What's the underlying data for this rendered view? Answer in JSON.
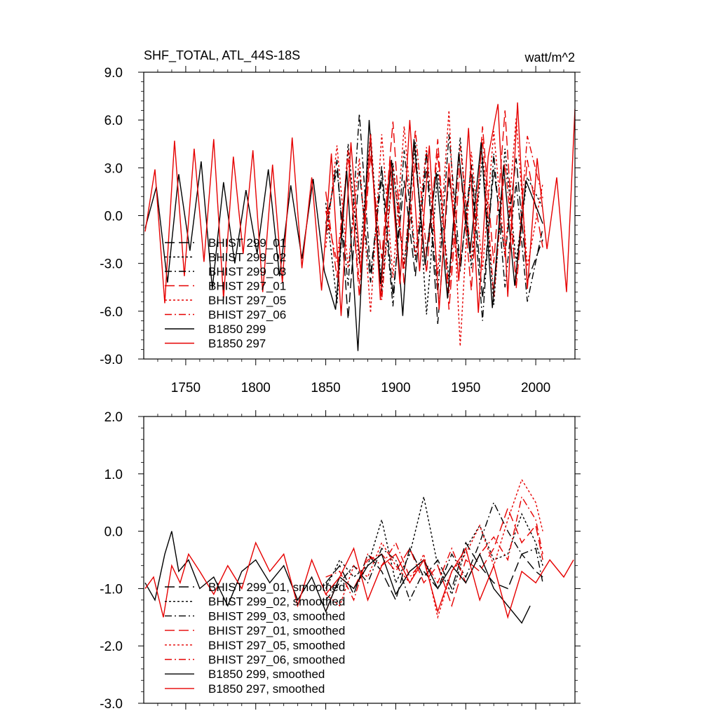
{
  "figure": {
    "title_left": "SHF_TOTAL, ATL_44S-18S",
    "title_right": "watt/m^2"
  },
  "chart_data": [
    {
      "type": "line",
      "panel": "top",
      "title": "SHF_TOTAL, ATL_44S-18S",
      "units": "watt/m^2",
      "xlim": [
        1720,
        2028
      ],
      "ylim": [
        -9,
        9
      ],
      "x_ticks": [
        1750,
        1800,
        1850,
        1900,
        1950,
        2000
      ],
      "x_tick_labels": [
        "1750",
        "1800",
        "1850",
        "1900",
        "1950",
        "2000"
      ],
      "y_ticks": [
        -9,
        -6,
        -3,
        0,
        3,
        6,
        9
      ],
      "y_tick_labels": [
        "-9.0",
        "-6.0",
        "-3.0",
        "0.0",
        "3.0",
        "6.0",
        "9.0"
      ],
      "legend_position": "lower-left",
      "series": [
        {
          "name": "BHIST 299_01",
          "color": "#000000",
          "dash": "long-dash",
          "x": [
            1850,
            1858,
            1866,
            1874,
            1882,
            1890,
            1898,
            1906,
            1914,
            1922,
            1930,
            1938,
            1946,
            1954,
            1962,
            1970,
            1978,
            1986,
            1994,
            2005
          ],
          "y": [
            -1.2,
            3.5,
            -6.5,
            2.8,
            -4.2,
            3.1,
            -5.0,
            2.2,
            -3.8,
            4.0,
            -6.8,
            2.5,
            -3.5,
            3.2,
            -5.2,
            2.9,
            -2.5,
            3.6,
            -4.1,
            -1.5
          ]
        },
        {
          "name": "BHIST 299_02",
          "color": "#000000",
          "dash": "dot",
          "x": [
            1850,
            1858,
            1866,
            1874,
            1882,
            1890,
            1898,
            1906,
            1914,
            1922,
            1930,
            1938,
            1946,
            1954,
            1962,
            1970,
            1978,
            1986,
            1994,
            2005
          ],
          "y": [
            0.8,
            -5.5,
            4.5,
            -3.0,
            5.2,
            -4.8,
            3.3,
            -3.1,
            4.6,
            -6.2,
            2.8,
            -4.0,
            4.9,
            -3.3,
            3.7,
            -5.6,
            4.2,
            -2.9,
            2.4,
            0.5
          ]
        },
        {
          "name": "BHIST 299_03",
          "color": "#000000",
          "dash": "dash-dot",
          "x": [
            1850,
            1858,
            1866,
            1874,
            1882,
            1890,
            1898,
            1906,
            1914,
            1922,
            1930,
            1938,
            1946,
            1954,
            1962,
            1970,
            1978,
            1986,
            1994,
            2005
          ],
          "y": [
            -0.5,
            2.9,
            -4.4,
            6.4,
            -3.6,
            2.4,
            -5.7,
            4.1,
            -2.8,
            3.0,
            -4.9,
            5.1,
            -3.2,
            2.6,
            -6.6,
            3.9,
            -4.5,
            2.1,
            -5.4,
            -0.8
          ]
        },
        {
          "name": "BHIST 297_01",
          "color": "#e60000",
          "dash": "long-dash",
          "x": [
            1850,
            1858,
            1866,
            1874,
            1882,
            1890,
            1898,
            1906,
            1914,
            1922,
            1930,
            1938,
            1946,
            1954,
            1962,
            1970,
            1978,
            1986,
            1994,
            2005
          ],
          "y": [
            1.5,
            -3.9,
            4.1,
            -5.1,
            3.8,
            -2.7,
            5.9,
            -4.4,
            3.4,
            -3.6,
            4.8,
            -5.9,
            3.1,
            -4.7,
            5.6,
            -3.0,
            6.6,
            -4.6,
            3.5,
            -2.0
          ]
        },
        {
          "name": "BHIST 297_05",
          "color": "#e60000",
          "dash": "dot",
          "x": [
            1850,
            1858,
            1866,
            1874,
            1882,
            1890,
            1898,
            1906,
            1914,
            1922,
            1930,
            1938,
            1946,
            1954,
            1962,
            1970,
            1978,
            1986,
            1994,
            2005
          ],
          "y": [
            -2.0,
            4.4,
            -3.3,
            3.6,
            -6.1,
            5.1,
            -3.9,
            5.6,
            -2.5,
            4.3,
            -3.7,
            6.6,
            -8.2,
            4.0,
            -3.4,
            5.3,
            -2.6,
            6.1,
            -3.2,
            2.0
          ]
        },
        {
          "name": "BHIST 297_06",
          "color": "#e60000",
          "dash": "dash-dot",
          "x": [
            1850,
            1858,
            1866,
            1874,
            1882,
            1890,
            1898,
            1906,
            1914,
            1922,
            1930,
            1938,
            1946,
            1954,
            1962,
            1970,
            1978,
            1986,
            1994,
            2005
          ],
          "y": [
            0.3,
            -2.9,
            3.6,
            -4.3,
            4.7,
            -5.3,
            3.0,
            -3.4,
            5.4,
            -2.3,
            3.9,
            -4.9,
            4.4,
            -2.7,
            4.8,
            -5.1,
            3.3,
            -4.0,
            5.0,
            1.1
          ]
        },
        {
          "name": "B1850 299",
          "color": "#000000",
          "dash": "solid",
          "x": [
            1721,
            1729,
            1737,
            1745,
            1753,
            1761,
            1769,
            1777,
            1785,
            1793,
            1801,
            1809,
            1817,
            1825,
            1833,
            1841,
            1849,
            1857,
            1865,
            1873,
            1881,
            1889,
            1897,
            1905,
            1913,
            1921,
            1929,
            1937,
            1945,
            1953,
            1961,
            1969,
            1977,
            1985,
            1993,
            2005
          ],
          "y": [
            -0.8,
            1.8,
            -4.2,
            2.6,
            -2.2,
            3.4,
            -4.6,
            2.1,
            -3.0,
            1.6,
            -2.4,
            2.9,
            -3.8,
            1.9,
            -2.7,
            2.3,
            -3.5,
            -5.9,
            2.8,
            -8.5,
            6.0,
            -4.3,
            3.5,
            -6.3,
            4.8,
            -3.1,
            2.7,
            -5.2,
            3.9,
            -2.4,
            4.6,
            -5.8,
            3.1,
            -4.4,
            2.2,
            -0.5
          ]
        },
        {
          "name": "B1850 297",
          "color": "#e60000",
          "dash": "solid",
          "x": [
            1721,
            1728,
            1735,
            1742,
            1749,
            1756,
            1763,
            1770,
            1777,
            1784,
            1791,
            1798,
            1805,
            1812,
            1819,
            1826,
            1833,
            1840,
            1847,
            1854,
            1861,
            1868,
            1875,
            1882,
            1889,
            1896,
            1903,
            1910,
            1917,
            1924,
            1931,
            1938,
            1945,
            1952,
            1959,
            1966,
            1973,
            1980,
            1987,
            1994,
            2001,
            2008,
            2015,
            2022,
            2028
          ],
          "y": [
            -1.0,
            2.9,
            -5.5,
            4.7,
            -3.8,
            4.2,
            -2.9,
            4.8,
            -5.2,
            3.7,
            -2.4,
            4.1,
            -4.8,
            3.2,
            -4.2,
            4.9,
            -3.3,
            2.4,
            -4.7,
            3.9,
            -6.3,
            4.6,
            -3.6,
            5.1,
            -5.3,
            3.5,
            -4.3,
            6.0,
            -3.5,
            4.4,
            -5.9,
            3.3,
            -4.1,
            5.5,
            -6.1,
            3.7,
            7.0,
            -5.1,
            7.1,
            -4.6,
            3.6,
            -2.1,
            2.4,
            -4.8,
            6.7
          ]
        }
      ]
    },
    {
      "type": "line",
      "panel": "bottom",
      "xlim": [
        1720,
        2028
      ],
      "ylim": [
        -3,
        2
      ],
      "y_ticks": [
        -3,
        -2,
        -1,
        0,
        1,
        2
      ],
      "y_tick_labels": [
        "-3.0",
        "-2.0",
        "-1.0",
        "0.0",
        "1.0",
        "2.0"
      ],
      "legend_position": "lower-left",
      "series": [
        {
          "name": "BHIST 299_01, smoothed",
          "color": "#000000",
          "dash": "long-dash",
          "x": [
            1850,
            1860,
            1870,
            1880,
            1890,
            1900,
            1910,
            1920,
            1930,
            1940,
            1950,
            1960,
            1970,
            1980,
            1990,
            2000,
            2005
          ],
          "y": [
            -0.9,
            -0.6,
            -1.1,
            -0.4,
            -0.7,
            -1.2,
            -0.3,
            -0.8,
            -0.5,
            -1.0,
            -0.2,
            -0.6,
            -0.9,
            -1.0,
            -0.4,
            -0.7,
            -0.8
          ]
        },
        {
          "name": "BHIST 299_02, smoothed",
          "color": "#000000",
          "dash": "dot",
          "x": [
            1850,
            1860,
            1870,
            1880,
            1890,
            1900,
            1910,
            1920,
            1930,
            1940,
            1950,
            1960,
            1970,
            1980,
            1990,
            2000,
            2005
          ],
          "y": [
            -1.0,
            -0.5,
            -0.8,
            -0.6,
            0.2,
            -0.9,
            -0.4,
            0.6,
            -0.6,
            -1.1,
            -0.3,
            0.1,
            -0.5,
            -0.4,
            0.3,
            -0.2,
            -0.6
          ]
        },
        {
          "name": "BHIST 299_03, smoothed",
          "color": "#000000",
          "dash": "dash-dot",
          "x": [
            1850,
            1860,
            1870,
            1880,
            1890,
            1900,
            1910,
            1920,
            1930,
            1940,
            1950,
            1960,
            1970,
            1980,
            1990,
            2000,
            2005
          ],
          "y": [
            -1.2,
            -0.9,
            -0.6,
            -0.9,
            -0.3,
            -0.5,
            -1.2,
            -0.7,
            -1.0,
            -0.4,
            -0.8,
            -0.2,
            0.5,
            0.0,
            -0.4,
            -0.3,
            -0.9
          ]
        },
        {
          "name": "BHIST 297_01, smoothed",
          "color": "#e60000",
          "dash": "long-dash",
          "x": [
            1850,
            1860,
            1870,
            1880,
            1890,
            1900,
            1910,
            1920,
            1930,
            1940,
            1950,
            1960,
            1970,
            1980,
            1990,
            2000,
            2005
          ],
          "y": [
            -1.4,
            -0.8,
            -1.0,
            -0.5,
            -0.4,
            -0.7,
            -0.3,
            -0.9,
            -0.6,
            -1.3,
            -0.5,
            -0.7,
            -0.3,
            0.4,
            -0.2,
            0.1,
            -0.5
          ]
        },
        {
          "name": "BHIST 297_05, smoothed",
          "color": "#e60000",
          "dash": "dot",
          "x": [
            1850,
            1860,
            1870,
            1880,
            1890,
            1900,
            1910,
            1920,
            1930,
            1940,
            1950,
            1960,
            1970,
            1980,
            1990,
            2000,
            2005
          ],
          "y": [
            -1.1,
            -1.3,
            -0.6,
            -0.8,
            -0.2,
            -0.6,
            -0.9,
            -0.4,
            -1.5,
            -0.7,
            -0.4,
            0.1,
            -0.6,
            0.2,
            0.9,
            0.5,
            0.0
          ]
        },
        {
          "name": "BHIST 297_06, smoothed",
          "color": "#e60000",
          "dash": "dash-dot",
          "x": [
            1850,
            1860,
            1870,
            1880,
            1890,
            1900,
            1910,
            1920,
            1930,
            1940,
            1950,
            1960,
            1970,
            1980,
            1990,
            2000,
            2005
          ],
          "y": [
            -0.8,
            -0.7,
            -1.2,
            -0.4,
            -0.6,
            -0.2,
            -0.8,
            -0.5,
            -0.9,
            -0.3,
            -0.9,
            -0.4,
            -0.1,
            -0.5,
            0.6,
            0.2,
            -0.4
          ]
        },
        {
          "name": "B1850 299, smoothed",
          "color": "#000000",
          "dash": "solid",
          "x": [
            1721,
            1728,
            1735,
            1740,
            1745,
            1752,
            1760,
            1770,
            1780,
            1790,
            1800,
            1810,
            1820,
            1830,
            1840,
            1850,
            1860,
            1870,
            1880,
            1890,
            1900,
            1910,
            1920,
            1930,
            1940,
            1950,
            1960,
            1970,
            1980,
            1990,
            1996
          ],
          "y": [
            -0.9,
            -1.2,
            -0.4,
            0.0,
            -0.7,
            -0.5,
            -1.0,
            -0.8,
            -1.3,
            -0.7,
            -0.5,
            -0.9,
            -0.6,
            -1.2,
            -0.8,
            -1.4,
            -0.8,
            -1.0,
            -0.6,
            -0.4,
            -1.1,
            -0.7,
            -0.5,
            -1.0,
            -0.6,
            -0.9,
            -0.4,
            -1.0,
            -1.3,
            -1.6,
            -1.3
          ]
        },
        {
          "name": "B1850 297, smoothed",
          "color": "#e60000",
          "dash": "solid",
          "x": [
            1721,
            1727,
            1734,
            1740,
            1746,
            1752,
            1760,
            1770,
            1780,
            1790,
            1800,
            1810,
            1820,
            1830,
            1840,
            1850,
            1860,
            1870,
            1880,
            1890,
            1900,
            1910,
            1920,
            1930,
            1940,
            1950,
            1960,
            1970,
            1980,
            1990,
            2000,
            2010,
            2020,
            2027
          ],
          "y": [
            -1.0,
            -0.8,
            -1.5,
            -0.6,
            -0.9,
            -0.4,
            -0.7,
            -1.1,
            -0.6,
            -1.0,
            -0.2,
            -0.7,
            -0.4,
            -1.3,
            -0.5,
            -1.1,
            -0.8,
            -0.3,
            -1.2,
            -0.6,
            -0.4,
            -0.9,
            -0.5,
            -1.4,
            -0.7,
            -0.3,
            -1.2,
            -0.6,
            -1.5,
            -0.7,
            -0.9,
            -0.5,
            -0.8,
            -0.5
          ]
        }
      ]
    }
  ]
}
